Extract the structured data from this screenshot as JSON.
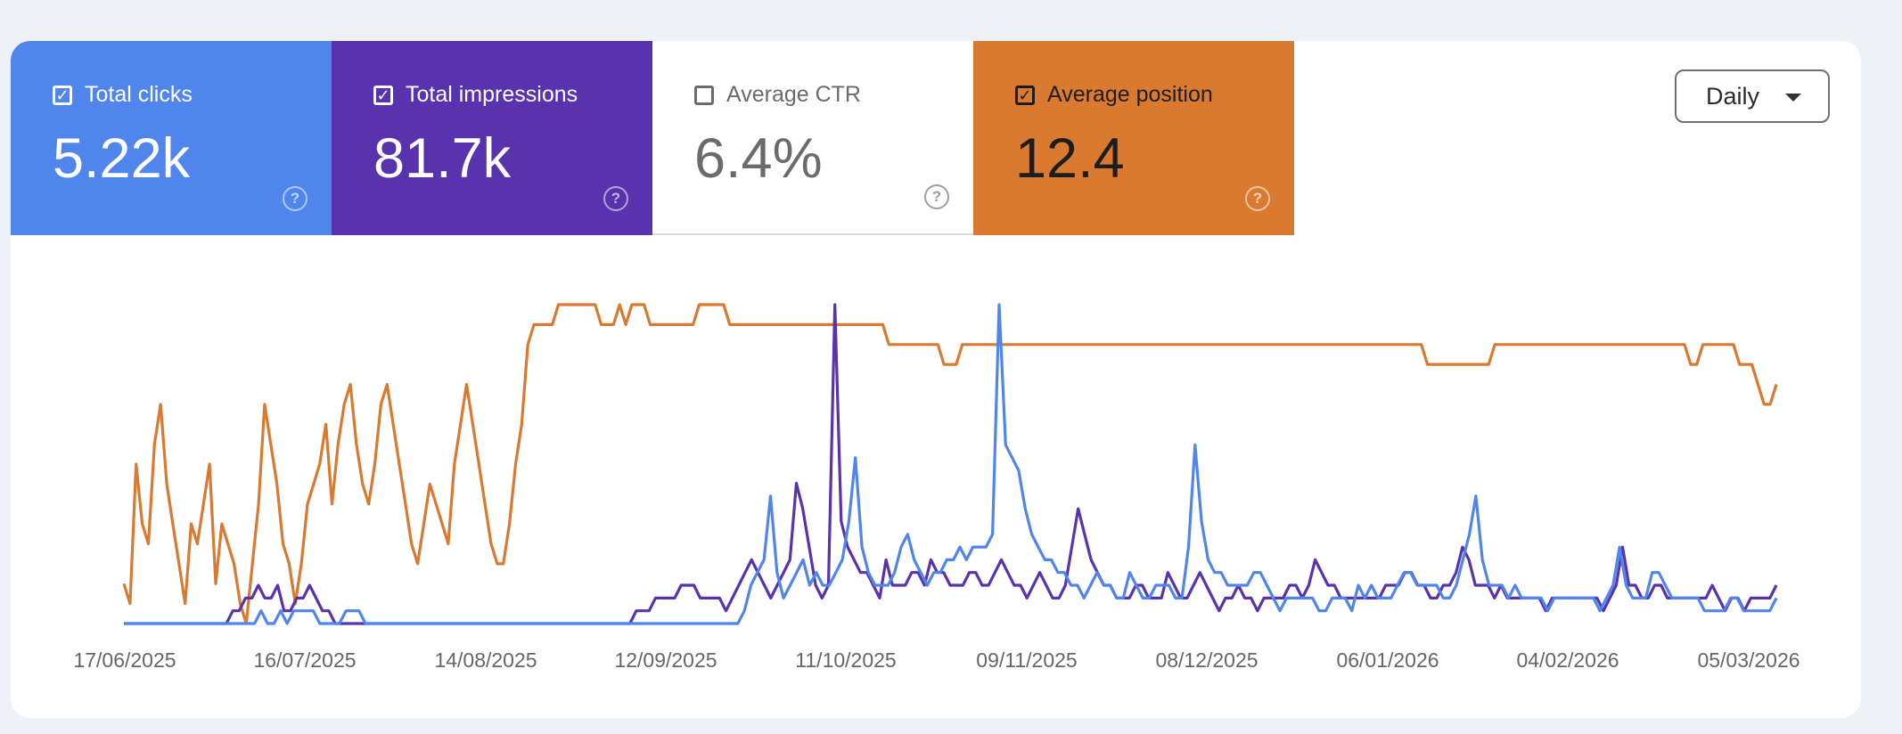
{
  "metrics": [
    {
      "label": "Total clicks",
      "value": "5.22k",
      "checked": true,
      "color": "#5086ec"
    },
    {
      "label": "Total impressions",
      "value": "81.7k",
      "checked": true,
      "color": "#5932ad"
    },
    {
      "label": "Average CTR",
      "value": "6.4%",
      "checked": false,
      "color": "#ffffff"
    },
    {
      "label": "Average position",
      "value": "12.4",
      "checked": true,
      "color": "#d97a30"
    }
  ],
  "granularity": {
    "selected": "Daily"
  },
  "chart_data": {
    "type": "line",
    "x_ticks": [
      "17/06/2025",
      "16/07/2025",
      "14/08/2025",
      "12/09/2025",
      "11/10/2025",
      "09/11/2025",
      "08/12/2025",
      "06/01/2026",
      "04/02/2026",
      "05/03/2026"
    ],
    "x_range": [
      "15/06/2025",
      "08/03/2026"
    ],
    "series": [
      {
        "name": "Average position",
        "color": "#d97a30",
        "values": [
          2,
          1,
          8,
          5,
          4,
          9,
          11,
          7,
          5,
          3,
          1,
          5,
          4,
          6,
          8,
          2,
          5,
          4,
          3,
          1,
          0,
          3,
          6,
          11,
          9,
          7,
          4,
          3,
          1,
          3,
          6,
          7,
          8,
          10,
          6,
          9,
          11,
          12,
          9,
          7,
          6,
          8,
          11,
          12,
          10,
          8,
          6,
          4,
          3,
          5,
          7,
          6,
          5,
          4,
          8,
          10,
          12,
          10,
          8,
          6,
          4,
          3,
          3,
          5,
          8,
          10,
          14,
          15,
          15,
          15,
          15,
          16,
          16,
          16,
          16,
          16,
          16,
          16,
          15,
          15,
          15,
          16,
          15,
          16,
          16,
          16,
          15,
          15,
          15,
          15,
          15,
          15,
          15,
          15,
          16,
          16,
          16,
          16,
          16,
          15,
          15,
          15,
          15,
          15,
          15,
          15,
          15,
          15,
          15,
          15,
          15,
          15,
          15,
          15,
          15,
          15,
          15,
          15,
          15,
          15,
          15,
          15,
          15,
          15,
          15,
          14,
          14,
          14,
          14,
          14,
          14,
          14,
          14,
          14,
          13,
          13,
          13,
          14,
          14,
          14,
          14,
          14,
          14,
          14,
          14,
          14,
          14,
          14,
          14,
          14,
          14,
          14,
          14,
          14,
          14,
          14,
          14,
          14,
          14,
          14,
          14,
          14,
          14,
          14,
          14,
          14,
          14,
          14,
          14,
          14,
          14,
          14,
          14,
          14,
          14,
          14,
          14,
          14,
          14,
          14,
          14,
          14,
          14,
          14,
          14,
          14,
          14,
          14,
          14,
          14,
          14,
          14,
          14,
          14,
          14,
          14,
          14,
          14,
          14,
          14,
          14,
          14,
          14,
          14,
          14,
          14,
          14,
          14,
          14,
          14,
          14,
          14,
          14,
          13,
          13,
          13,
          13,
          13,
          13,
          13,
          13,
          13,
          13,
          13,
          14,
          14,
          14,
          14,
          14,
          14,
          14,
          14,
          14,
          14,
          14,
          14,
          14,
          14,
          14,
          14,
          14,
          14,
          14,
          14,
          14,
          14,
          14,
          14,
          14,
          14,
          14,
          14,
          14,
          14,
          14,
          14,
          13,
          13,
          14,
          14,
          14,
          14,
          14,
          14,
          13,
          13,
          13,
          12,
          11,
          11,
          12
        ]
      },
      {
        "name": "Total impressions",
        "color": "#5932ad",
        "values": [
          0,
          0,
          0,
          0,
          0,
          0,
          0,
          0,
          0,
          0,
          0,
          0,
          0,
          0,
          0,
          0,
          0,
          1,
          1,
          2,
          2,
          3,
          2,
          2,
          3,
          1,
          1,
          2,
          2,
          3,
          2,
          1,
          1,
          0,
          0,
          0,
          0,
          0,
          0,
          0,
          0,
          0,
          0,
          0,
          0,
          0,
          0,
          0,
          0,
          0,
          0,
          0,
          0,
          0,
          0,
          0,
          0,
          0,
          0,
          0,
          0,
          0,
          0,
          0,
          0,
          0,
          0,
          0,
          0,
          0,
          0,
          0,
          0,
          0,
          0,
          0,
          0,
          0,
          0,
          0,
          1,
          1,
          1,
          2,
          2,
          2,
          2,
          3,
          3,
          3,
          2,
          2,
          2,
          2,
          1,
          2,
          3,
          4,
          5,
          4,
          3,
          2,
          3,
          4,
          5,
          11,
          9,
          6,
          3,
          2,
          3,
          25,
          8,
          6,
          5,
          4,
          4,
          3,
          2,
          5,
          3,
          3,
          3,
          4,
          4,
          3,
          5,
          4,
          4,
          3,
          3,
          3,
          4,
          4,
          3,
          3,
          4,
          5,
          4,
          3,
          3,
          2,
          3,
          4,
          3,
          2,
          2,
          3,
          6,
          9,
          7,
          5,
          4,
          3,
          3,
          2,
          2,
          2,
          3,
          3,
          2,
          2,
          2,
          4,
          3,
          2,
          2,
          3,
          4,
          3,
          2,
          1,
          2,
          2,
          3,
          2,
          2,
          1,
          2,
          2,
          2,
          2,
          3,
          3,
          2,
          3,
          5,
          4,
          3,
          3,
          2,
          2,
          2,
          2,
          2,
          2,
          2,
          3,
          3,
          3,
          4,
          4,
          3,
          3,
          2,
          2,
          3,
          3,
          4,
          6,
          5,
          3,
          3,
          3,
          2,
          3,
          2,
          2,
          2,
          2,
          2,
          2,
          1,
          2,
          2,
          2,
          2,
          2,
          2,
          2,
          2,
          1,
          2,
          3,
          6,
          3,
          3,
          2,
          2,
          3,
          3,
          2,
          2,
          2,
          2,
          2,
          2,
          2,
          3,
          2,
          1,
          2,
          2,
          1,
          2,
          2,
          2,
          2,
          3
        ]
      },
      {
        "name": "Total clicks",
        "color": "#5086ec",
        "values": [
          0,
          0,
          0,
          0,
          0,
          0,
          0,
          0,
          0,
          0,
          0,
          0,
          0,
          0,
          0,
          0,
          0,
          0,
          0,
          0,
          0,
          1,
          0,
          0,
          1,
          0,
          1,
          1,
          1,
          1,
          0,
          0,
          0,
          0,
          1,
          1,
          1,
          0,
          0,
          0,
          0,
          0,
          0,
          0,
          0,
          0,
          0,
          0,
          0,
          0,
          0,
          0,
          0,
          0,
          0,
          0,
          0,
          0,
          0,
          0,
          0,
          0,
          0,
          0,
          0,
          0,
          0,
          0,
          0,
          0,
          0,
          0,
          0,
          0,
          0,
          0,
          0,
          0,
          0,
          0,
          0,
          0,
          0,
          0,
          0,
          0,
          0,
          0,
          0,
          0,
          0,
          0,
          0,
          0,
          0,
          1,
          3,
          4,
          5,
          10,
          4,
          2,
          3,
          4,
          5,
          3,
          4,
          3,
          3,
          4,
          5,
          8,
          13,
          6,
          4,
          3,
          3,
          3,
          4,
          6,
          7,
          5,
          4,
          3,
          4,
          4,
          5,
          5,
          6,
          5,
          6,
          6,
          6,
          7,
          25,
          14,
          13,
          12,
          9,
          7,
          6,
          5,
          5,
          4,
          4,
          3,
          3,
          2,
          3,
          4,
          3,
          3,
          2,
          2,
          4,
          3,
          2,
          2,
          3,
          3,
          3,
          2,
          2,
          6,
          14,
          8,
          5,
          4,
          4,
          3,
          3,
          3,
          3,
          4,
          4,
          3,
          2,
          1,
          2,
          2,
          2,
          2,
          2,
          1,
          1,
          2,
          2,
          2,
          1,
          3,
          2,
          3,
          2,
          2,
          2,
          3,
          4,
          4,
          3,
          3,
          3,
          3,
          2,
          2,
          3,
          5,
          7,
          10,
          5,
          3,
          3,
          3,
          2,
          3,
          2,
          2,
          2,
          2,
          1,
          2,
          2,
          2,
          2,
          2,
          2,
          2,
          1,
          2,
          3,
          6,
          3,
          2,
          2,
          2,
          4,
          4,
          3,
          2,
          2,
          2,
          2,
          2,
          1,
          1,
          1,
          1,
          2,
          2,
          1,
          1,
          1,
          1,
          1,
          2
        ]
      }
    ],
    "grid": false
  }
}
